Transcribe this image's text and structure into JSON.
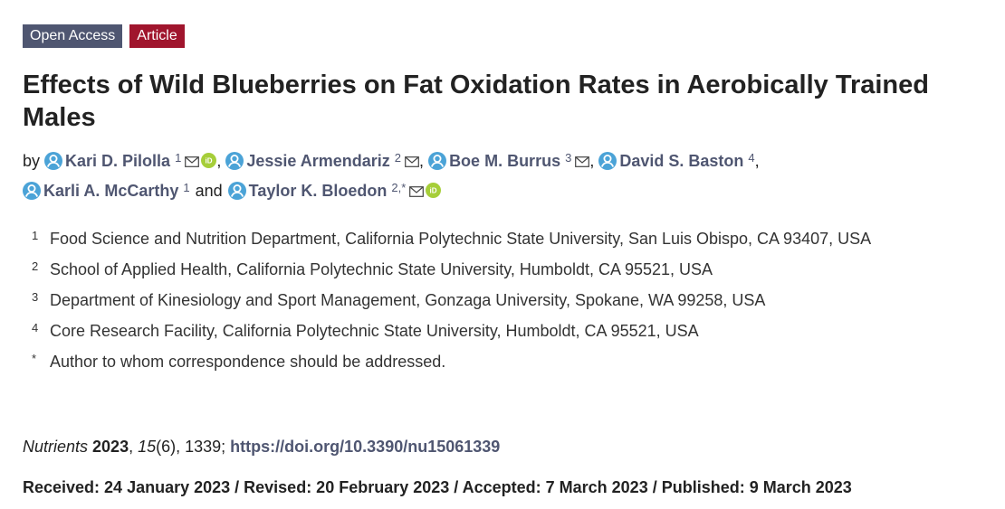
{
  "badges": [
    "Open Access",
    "Article"
  ],
  "title": "Effects of Wild Blueberries on Fat Oxidation Rates in Aerobically Trained Males",
  "byline": {
    "by": "by",
    "authors": [
      {
        "name": "Kari D. Pilolla",
        "sup": "1",
        "mail": true,
        "orcid": true,
        "sep": ","
      },
      {
        "name": "Jessie Armendariz",
        "sup": "2",
        "mail": true,
        "orcid": false,
        "sep": ","
      },
      {
        "name": "Boe M. Burrus",
        "sup": "3",
        "mail": true,
        "orcid": false,
        "sep": ","
      },
      {
        "name": "David S. Baston",
        "sup": "4",
        "mail": false,
        "orcid": false,
        "sep": ","
      },
      {
        "name": "Karli A. McCarthy",
        "sup": "1",
        "mail": false,
        "orcid": false,
        "sep": "and"
      },
      {
        "name": "Taylor K. Bloedon",
        "sup": "2,*",
        "mail": true,
        "orcid": true
      }
    ]
  },
  "affiliations": [
    {
      "mark": "1",
      "text": "Food Science and Nutrition Department, California Polytechnic State University, San Luis Obispo, CA 93407, USA"
    },
    {
      "mark": "2",
      "text": "School of Applied Health, California Polytechnic State University, Humboldt, CA 95521, USA"
    },
    {
      "mark": "3",
      "text": "Department of Kinesiology and Sport Management, Gonzaga University, Spokane, WA 99258, USA"
    },
    {
      "mark": "4",
      "text": "Core Research Facility, California Polytechnic State University, Humboldt, CA 95521, USA"
    },
    {
      "mark": "*",
      "text": "Author to whom correspondence should be addressed."
    }
  ],
  "citation": [
    {
      "text": "Nutrients ",
      "style": "italic"
    },
    {
      "text": "2023",
      "style": "bold"
    },
    {
      "text": ", "
    },
    {
      "text": "15",
      "style": "italic"
    },
    {
      "text": "(6), 1339; "
    },
    {
      "text": "https://doi.org/10.3390/nu15061339",
      "style": "bold"
    }
  ],
  "dates": "Received: 24 January 2023 / Revised: 20 February 2023 / Accepted: 7 March 2023 / Published: 9 March 2023"
}
